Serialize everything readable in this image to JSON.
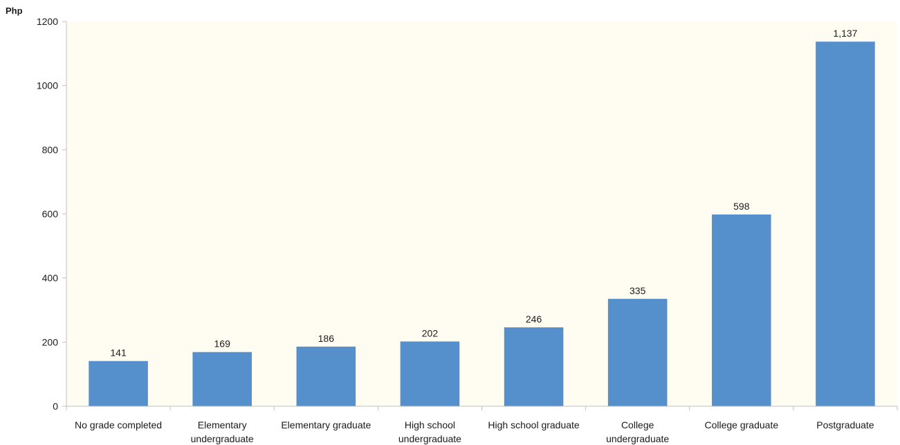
{
  "chart_data": {
    "type": "bar",
    "unit_label": "Php",
    "categories": [
      [
        "No grade completed"
      ],
      [
        "Elementary",
        "undergraduate"
      ],
      [
        "Elementary graduate"
      ],
      [
        "High school",
        "undergraduate"
      ],
      [
        "High school graduate"
      ],
      [
        "College",
        "undergraduate"
      ],
      [
        "College graduate"
      ],
      [
        "Postgraduate"
      ]
    ],
    "values": [
      141,
      169,
      186,
      202,
      246,
      335,
      598,
      1137
    ],
    "value_labels": [
      "141",
      "169",
      "186",
      "202",
      "246",
      "335",
      "598",
      "1,137"
    ],
    "yticks": [
      0,
      200,
      400,
      600,
      800,
      1000,
      1200
    ],
    "ylim": [
      0,
      1200
    ],
    "grid": false,
    "legend": "none",
    "colors": {
      "bar": "#5590cc",
      "plot_background": "#fffdf2",
      "axis": "#bfbfbf"
    }
  }
}
